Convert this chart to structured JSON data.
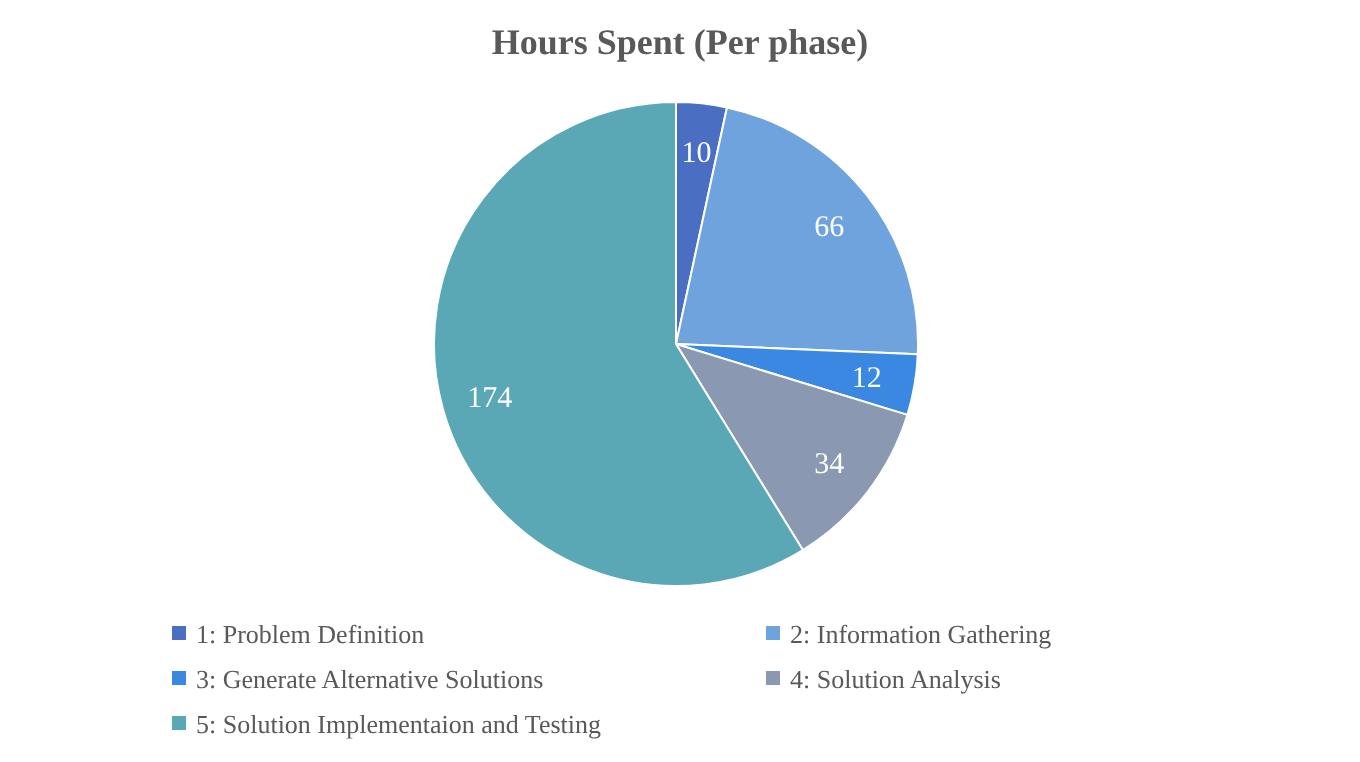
{
  "chart_data": {
    "type": "pie",
    "title": "Hours Spent (Per phase)",
    "categories": [
      "1: Problem Definition",
      "2: Information Gathering",
      "3: Generate Alternative Solutions",
      "4: Solution Analysis",
      "5: Solution Implementaion and Testing"
    ],
    "values": [
      10,
      66,
      12,
      34,
      174
    ],
    "colors": [
      "#4a6fc2",
      "#6fa3de",
      "#3a88e2",
      "#8a98b2",
      "#5aa8b6"
    ],
    "data_labels": true,
    "legend": "bottom"
  }
}
